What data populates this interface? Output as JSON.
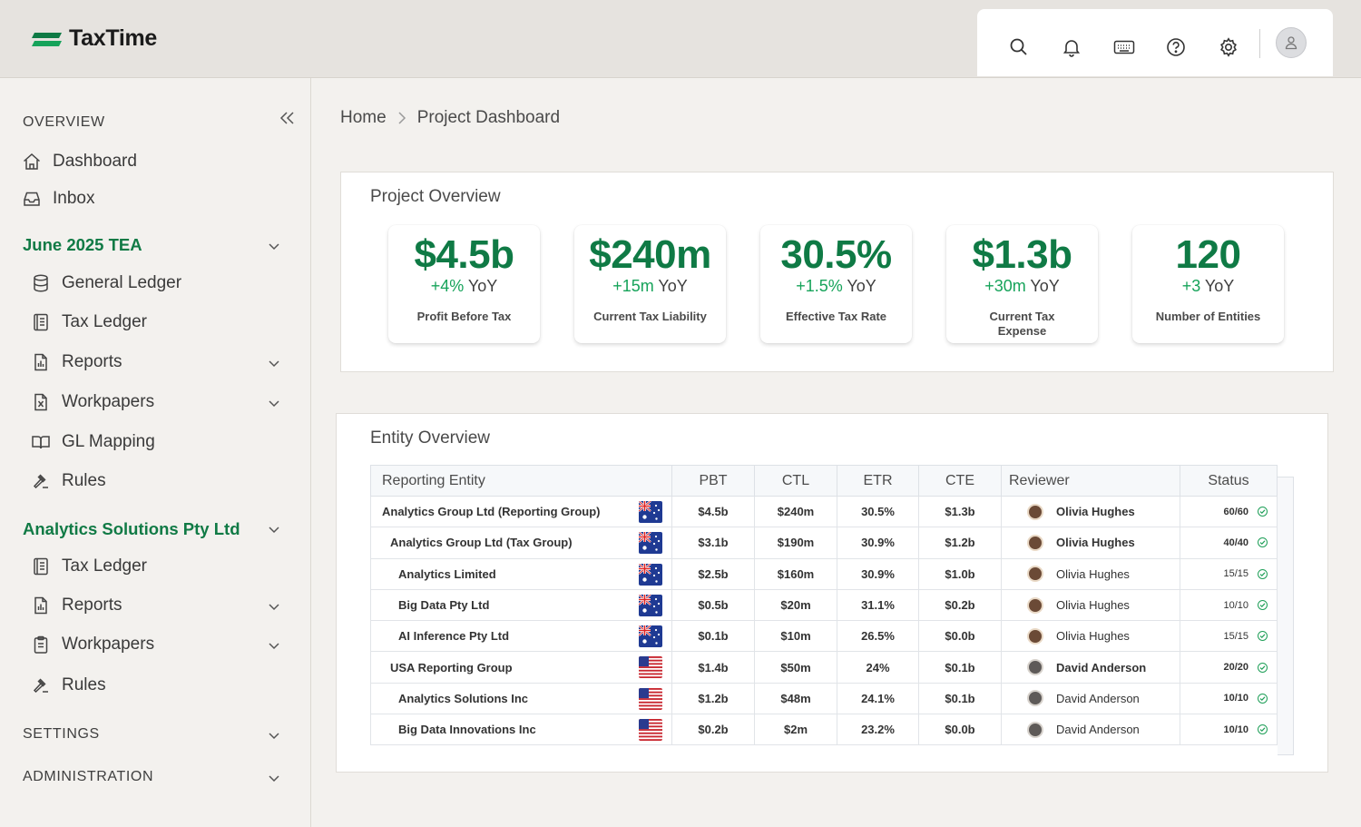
{
  "app": {
    "name": "TaxTime"
  },
  "toolbar": {
    "icons": [
      "search-icon",
      "bell-icon",
      "keyboard-icon",
      "help-icon",
      "gear-icon",
      "user-avatar"
    ]
  },
  "sidebar": {
    "overview_label": "OVERVIEW",
    "dashboard": "Dashboard",
    "inbox": "Inbox",
    "group1": {
      "title": "June 2025 TEA",
      "items": [
        "General Ledger",
        "Tax Ledger",
        "Reports",
        "Workpapers",
        "GL Mapping",
        "Rules"
      ]
    },
    "group2": {
      "title": "Analytics Solutions Pty Ltd",
      "items": [
        "Tax Ledger",
        "Reports",
        "Workpapers",
        "Rules"
      ]
    },
    "settings_label": "SETTINGS",
    "administration_label": "ADMINISTRATION"
  },
  "breadcrumb": {
    "home": "Home",
    "current": "Project Dashboard"
  },
  "project_overview": {
    "title": "Project Overview",
    "kpis": [
      {
        "value": "$4.5b",
        "change": "+4%",
        "yoy": "YoY",
        "label": "Profit Before Tax"
      },
      {
        "value": "$240m",
        "change": "+15m",
        "yoy": "YoY",
        "label": "Current Tax Liability"
      },
      {
        "value": "30.5%",
        "change": "+1.5%",
        "yoy": "YoY",
        "label": "Effective Tax Rate"
      },
      {
        "value": "$1.3b",
        "change": "+30m",
        "yoy": "YoY",
        "label": "Current Tax Expense"
      },
      {
        "value": "120",
        "change": "+3",
        "yoy": "YoY",
        "label": "Number of Entities"
      }
    ]
  },
  "entity_overview": {
    "title": "Entity Overview",
    "columns": [
      "Reporting Entity",
      "PBT",
      "CTL",
      "ETR",
      "CTE",
      "Reviewer",
      "Status"
    ],
    "rows": [
      {
        "entity": "Analytics Group Ltd (Reporting Group)",
        "flag": "au",
        "pbt": "$4.5b",
        "ctl": "$240m",
        "etr": "30.5%",
        "cte": "$1.3b",
        "reviewer": "Olivia Hughes",
        "status": "60/60"
      },
      {
        "entity": "Analytics Group Ltd (Tax Group)",
        "flag": "au",
        "pbt": "$3.1b",
        "ctl": "$190m",
        "etr": "30.9%",
        "cte": "$1.2b",
        "reviewer": "Olivia Hughes",
        "status": "40/40"
      },
      {
        "entity": "Analytics Limited",
        "flag": "au",
        "pbt": "$2.5b",
        "ctl": "$160m",
        "etr": "30.9%",
        "cte": "$1.0b",
        "reviewer": "Olivia Hughes",
        "status": "15/15"
      },
      {
        "entity": "Big Data Pty Ltd",
        "flag": "au",
        "pbt": "$0.5b",
        "ctl": "$20m",
        "etr": "31.1%",
        "cte": "$0.2b",
        "reviewer": "Olivia Hughes",
        "status": "10/10"
      },
      {
        "entity": "AI Inference Pty Ltd",
        "flag": "au",
        "pbt": "$0.1b",
        "ctl": "$10m",
        "etr": "26.5%",
        "cte": "$0.0b",
        "reviewer": "Olivia Hughes",
        "status": "15/15"
      },
      {
        "entity": "USA Reporting Group",
        "flag": "us",
        "pbt": "$1.4b",
        "ctl": "$50m",
        "etr": "24%",
        "cte": "$0.1b",
        "reviewer": "David Anderson",
        "status": "20/20"
      },
      {
        "entity": "Analytics Solutions Inc",
        "flag": "us",
        "pbt": "$1.2b",
        "ctl": "$48m",
        "etr": "24.1%",
        "cte": "$0.1b",
        "reviewer": "David Anderson",
        "status": "10/10"
      },
      {
        "entity": "Big Data Innovations Inc",
        "flag": "us",
        "pbt": "$0.2b",
        "ctl": "$2m",
        "etr": "23.2%",
        "cte": "$0.0b",
        "reviewer": "David Anderson",
        "status": "10/10"
      }
    ]
  },
  "colors": {
    "brand_green": "#0f7a45",
    "positive_green": "#16a35a",
    "status_ok": "#1f9f58"
  }
}
